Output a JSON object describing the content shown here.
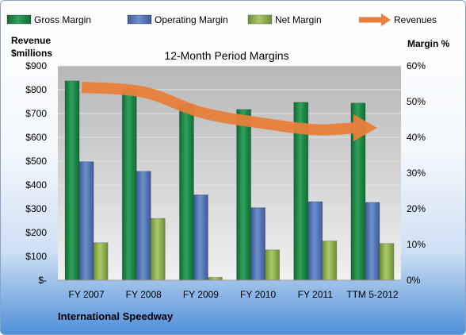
{
  "chart_data": {
    "type": "bar",
    "title": "12-Month Period Margins",
    "company": "International Speedway",
    "left_axis_label": [
      "Revenue",
      "$millions"
    ],
    "right_axis_label": "Margin %",
    "categories": [
      "FY 2007",
      "FY 2008",
      "FY 2009",
      "FY 2010",
      "FY 2011",
      "TTM 5-2012"
    ],
    "left_ticks": [
      "$-",
      "$100",
      "$200",
      "$300",
      "$400",
      "$500",
      "$600",
      "$700",
      "$800",
      "$900"
    ],
    "right_ticks": [
      "0%",
      "10%",
      "20%",
      "30%",
      "40%",
      "50%",
      "60%"
    ],
    "ylim_left": [
      0,
      900
    ],
    "ylim_right": [
      0,
      60
    ],
    "series": [
      {
        "name": "Gross Margin",
        "color": "#1e8a46",
        "axis": "right",
        "values": [
          55.8,
          53.5,
          49.2,
          47.8,
          49.8,
          49.6
        ]
      },
      {
        "name": "Operating Margin",
        "color": "#4a6eb0",
        "axis": "right",
        "values": [
          33.2,
          30.5,
          23.9,
          20.3,
          22.0,
          21.8
        ]
      },
      {
        "name": "Net Margin",
        "color": "#8fb050",
        "axis": "right",
        "values": [
          10.5,
          17.3,
          0.8,
          8.5,
          11.0,
          10.3
        ]
      },
      {
        "name": "Revenues",
        "color": "#e8803a",
        "axis": "left",
        "type": "line",
        "values": [
          810,
          790,
          705,
          662,
          632,
          640
        ]
      }
    ],
    "grid": true,
    "legend_position": "top"
  }
}
